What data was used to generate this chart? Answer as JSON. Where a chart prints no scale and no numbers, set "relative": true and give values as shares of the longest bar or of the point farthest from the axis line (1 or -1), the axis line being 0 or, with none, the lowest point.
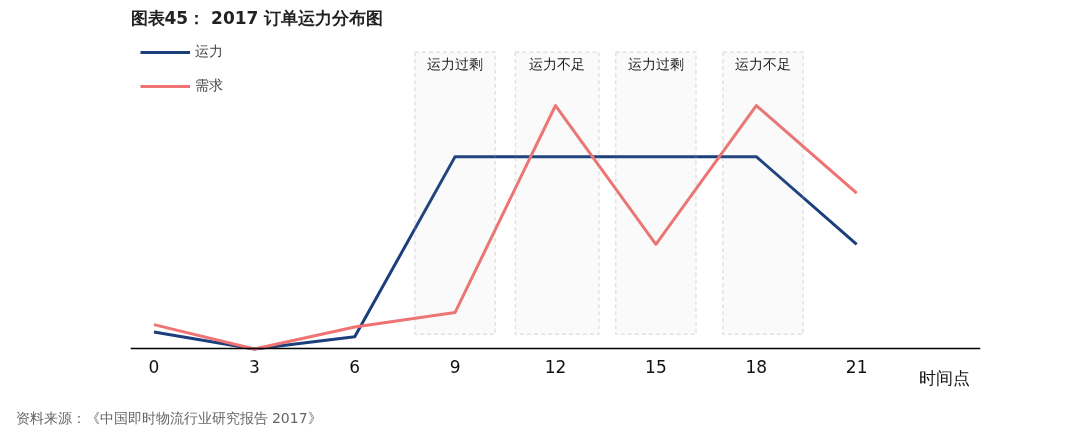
{
  "chart_data": {
    "type": "line",
    "title": "图表45： 2017 订单运力分布图",
    "xlabel": "时间点",
    "relative": true,
    "x": [
      0,
      3,
      6,
      9,
      12,
      15,
      18,
      21
    ],
    "xlim": [
      -0.7,
      24.7
    ],
    "xticks": [
      0,
      3,
      6,
      9,
      12,
      15,
      18,
      21
    ],
    "series": [
      {
        "name": "运力",
        "color": "#1a3f7c",
        "values": [
          0.07,
          0,
          0.05,
          0.79,
          0.79,
          0.79,
          0.79,
          0.43
        ]
      },
      {
        "name": "需求",
        "color": "#f07373",
        "values": [
          0.1,
          0,
          0.09,
          0.15,
          1,
          0.43,
          1,
          0.64
        ]
      }
    ],
    "bands": [
      {
        "axis": "x",
        "from": 7.8,
        "to": 10.2,
        "label": "运力过剩",
        "color": "#a6a6a6"
      },
      {
        "axis": "x",
        "from": 10.8,
        "to": 13.3,
        "label": "运力不足",
        "color": "#a6a6a6"
      },
      {
        "axis": "x",
        "from": 13.8,
        "to": 16.2,
        "label": "运力过剩",
        "color": "#a6a6a6"
      },
      {
        "axis": "x",
        "from": 17,
        "to": 19.4,
        "label": "运力不足",
        "color": "#a6a6a6"
      }
    ],
    "annotations": [
      "资料来源：《中国即时物流行业研究报告 2017》"
    ],
    "legend": "top left",
    "grid": false,
    "marker": "none",
    "line_style": "solid"
  }
}
